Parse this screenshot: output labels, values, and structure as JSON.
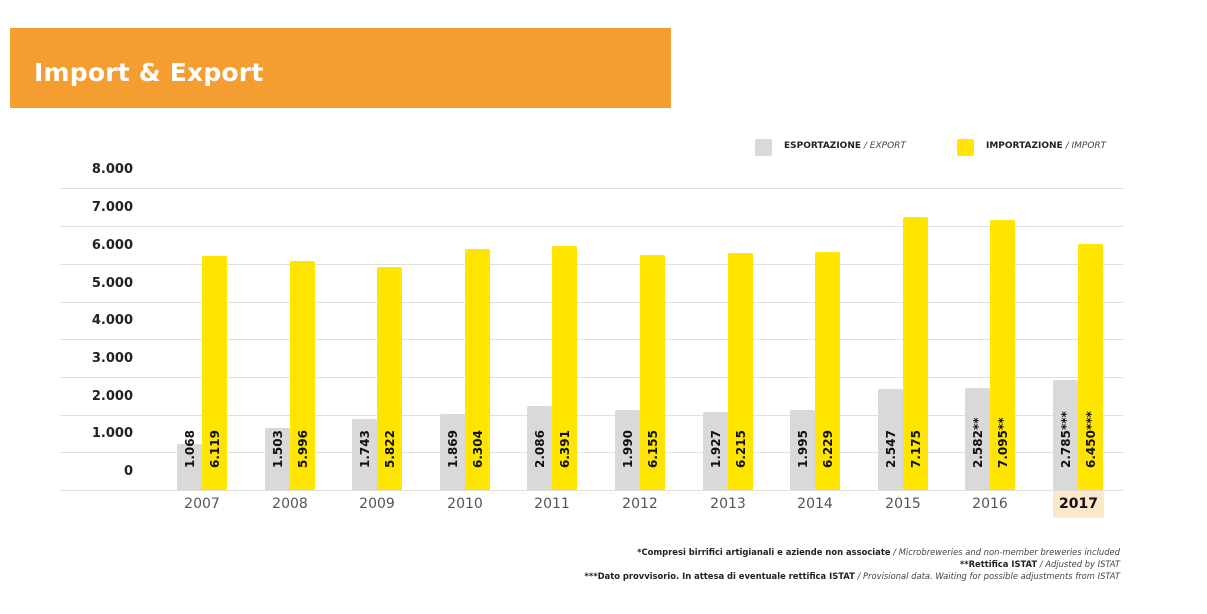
{
  "header": {
    "title": "Import & Export",
    "banner_color": "#f49e31"
  },
  "legend": {
    "export": {
      "label_it": "ESPORTAZIONE",
      "label_en": "/ EXPORT",
      "color": "#d9d9d9"
    },
    "import": {
      "label_it": "IMPORTAZIONE",
      "label_en": "/ IMPORT",
      "color": "#ffe500"
    }
  },
  "footnotes": [
    {
      "bold": "*Compresi birrifici artigianali e aziende non associate",
      "italic": " / Microbreweries and non-member breweries included"
    },
    {
      "bold": "**Rettifica ISTAT",
      "italic": " / Adjusted by ISTAT"
    },
    {
      "bold": "***Dato provvisorio. In attesa di eventuale rettifica ISTAT",
      "italic": " / Provisional data. Waiting for possible adjustments from ISTAT"
    }
  ],
  "chart_data": {
    "type": "bar",
    "title": "Import & Export",
    "xlabel": "",
    "ylabel": "",
    "ylim": [
      0,
      8000
    ],
    "yticks": [
      "8.000",
      "7.000",
      "6.000",
      "5.000",
      "4.000",
      "3.000",
      "2.000",
      "1.000",
      "0"
    ],
    "grid": true,
    "legend_position": "top-right",
    "categories": [
      "2007",
      "2008",
      "2009",
      "2010",
      "2011",
      "2012",
      "2013",
      "2014",
      "2015",
      "2016",
      "2017"
    ],
    "highlighted_category": "2017",
    "series": [
      {
        "name": "ESPORTAZIONE / EXPORT",
        "color": "#d9d9d9",
        "values": [
          1068,
          1503,
          1743,
          1869,
          2086,
          1990,
          1927,
          1995,
          2547,
          2582,
          2785
        ],
        "labels": [
          "1.068",
          "1.503",
          "1.743",
          "1.869",
          "2.086",
          "1.990",
          "1.927",
          "1.995",
          "2.547",
          "2.582**",
          "2.785***"
        ]
      },
      {
        "name": "IMPORTAZIONE / IMPORT",
        "color": "#ffe500",
        "values": [
          6119,
          5996,
          5822,
          6304,
          6391,
          6155,
          6215,
          6229,
          7175,
          7095,
          6450
        ],
        "labels": [
          "6.119",
          "5.996",
          "5.822",
          "6.304",
          "6.391",
          "6.155",
          "6.215",
          "6.229",
          "7.175",
          "7.095**",
          "6.450***"
        ]
      }
    ]
  }
}
